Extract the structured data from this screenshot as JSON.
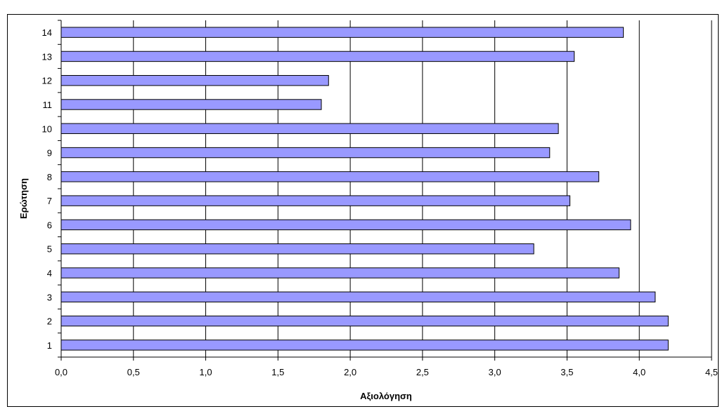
{
  "chart_data": {
    "type": "bar",
    "orientation": "horizontal",
    "title": "",
    "xlabel": "Αξιολόγηση",
    "ylabel": "Ερώτηση",
    "categories": [
      "1",
      "2",
      "3",
      "4",
      "5",
      "6",
      "7",
      "8",
      "9",
      "10",
      "11",
      "12",
      "13",
      "14"
    ],
    "values": [
      4.2,
      4.2,
      4.11,
      3.86,
      3.27,
      3.94,
      3.52,
      3.72,
      3.38,
      3.44,
      1.8,
      1.85,
      3.55,
      3.89
    ],
    "xlim": [
      0,
      4.5
    ],
    "xticks": [
      "0,0",
      "0,5",
      "1,0",
      "1,5",
      "2,0",
      "2,5",
      "3,0",
      "3,5",
      "4,0",
      "4,5"
    ],
    "grid": "vertical",
    "legend": "none",
    "colors": {
      "bar_fill": "#9999ff",
      "bar_stroke": "#000000",
      "grid": "#000000"
    }
  }
}
